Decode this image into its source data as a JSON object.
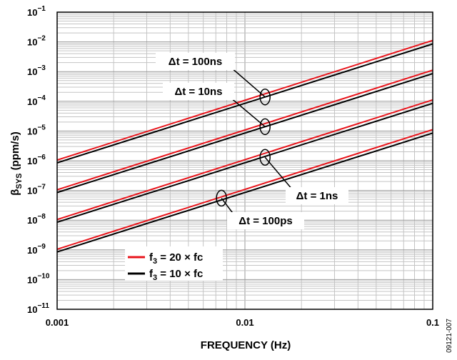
{
  "chart_data": {
    "type": "line",
    "xlabel": "FREQUENCY (Hz)",
    "ylabel_main": "β",
    "ylabel_sub": "SYS",
    "ylabel_unit": " (ppm/s)",
    "x_scale": "log",
    "y_scale": "log",
    "xlim": [
      0.001,
      0.1
    ],
    "ylim": [
      1e-11,
      0.1
    ],
    "grid": true,
    "x_ticks": [
      {
        "value": 0.001,
        "label": "0.001"
      },
      {
        "value": 0.01,
        "label": "0.01"
      },
      {
        "value": 0.1,
        "label": "0.1"
      }
    ],
    "y_ticks": [
      {
        "value": 0.1,
        "base": "10",
        "exp": "−1"
      },
      {
        "value": 0.01,
        "base": "10",
        "exp": "−2"
      },
      {
        "value": 0.001,
        "base": "10",
        "exp": "−3"
      },
      {
        "value": 0.0001,
        "base": "10",
        "exp": "−4"
      },
      {
        "value": 1e-05,
        "base": "10",
        "exp": "−5"
      },
      {
        "value": 1e-06,
        "base": "10",
        "exp": "−6"
      },
      {
        "value": 1e-07,
        "base": "10",
        "exp": "−7"
      },
      {
        "value": 1e-08,
        "base": "10",
        "exp": "−8"
      },
      {
        "value": 1e-09,
        "base": "10",
        "exp": "−9"
      },
      {
        "value": 1e-10,
        "base": "10",
        "exp": "−10"
      },
      {
        "value": 1e-11,
        "base": "10",
        "exp": "−11"
      }
    ],
    "series": [
      {
        "group": "Δt = 100ns",
        "legend": "f3 = 20 × fc",
        "color": "#e8141b",
        "x": [
          0.001,
          0.1
        ],
        "y": [
          1.05e-06,
          0.0112
        ]
      },
      {
        "group": "Δt = 100ns",
        "legend": "f3 = 10 × fc",
        "color": "#000000",
        "x": [
          0.001,
          0.1
        ],
        "y": [
          8.5e-07,
          0.0085
        ]
      },
      {
        "group": "Δt = 10ns",
        "legend": "f3 = 20 × fc",
        "color": "#e8141b",
        "x": [
          0.001,
          0.1
        ],
        "y": [
          1.05e-07,
          0.00112
        ]
      },
      {
        "group": "Δt = 10ns",
        "legend": "f3 = 10 × fc",
        "color": "#000000",
        "x": [
          0.001,
          0.1
        ],
        "y": [
          8.5e-08,
          0.00085
        ]
      },
      {
        "group": "Δt = 1ns",
        "legend": "f3 = 20 × fc",
        "color": "#e8141b",
        "x": [
          0.001,
          0.1
        ],
        "y": [
          1.05e-08,
          0.000112
        ]
      },
      {
        "group": "Δt = 1ns",
        "legend": "f3 = 10 × fc",
        "color": "#000000",
        "x": [
          0.001,
          0.1
        ],
        "y": [
          8.5e-09,
          8.5e-05
        ]
      },
      {
        "group": "Δt = 100ps",
        "legend": "f3 = 20 × fc",
        "color": "#e8141b",
        "x": [
          0.001,
          0.1
        ],
        "y": [
          1.05e-09,
          1.12e-05
        ]
      },
      {
        "group": "Δt = 100ps",
        "legend": "f3 = 10 × fc",
        "color": "#000000",
        "x": [
          0.001,
          0.1
        ],
        "y": [
          8.5e-10,
          8.5e-06
        ]
      }
    ],
    "annotations": [
      {
        "name": "annotation-dt-100ns",
        "text": "Δt = 100ns",
        "target_x": 0.0128,
        "target_y": 0.00014
      },
      {
        "name": "annotation-dt-10ns",
        "text": "Δt = 10ns",
        "target_x": 0.0128,
        "target_y": 1.4e-05
      },
      {
        "name": "annotation-dt-1ns",
        "text": "Δt = 1ns",
        "target_x": 0.0128,
        "target_y": 1.3e-06
      },
      {
        "name": "annotation-dt-100ps",
        "text": "Δt = 100ps",
        "target_x": 0.0075,
        "target_y": 5.5e-08
      }
    ],
    "legend": {
      "placement": "bottom-left",
      "entries": [
        {
          "color": "#e8141b",
          "f": "f",
          "sub": "3",
          "rest": " = 20 × fc"
        },
        {
          "color": "#000000",
          "f": "f",
          "sub": "3",
          "rest": " = 10 × fc"
        }
      ]
    },
    "figure_id": "09121-007"
  }
}
